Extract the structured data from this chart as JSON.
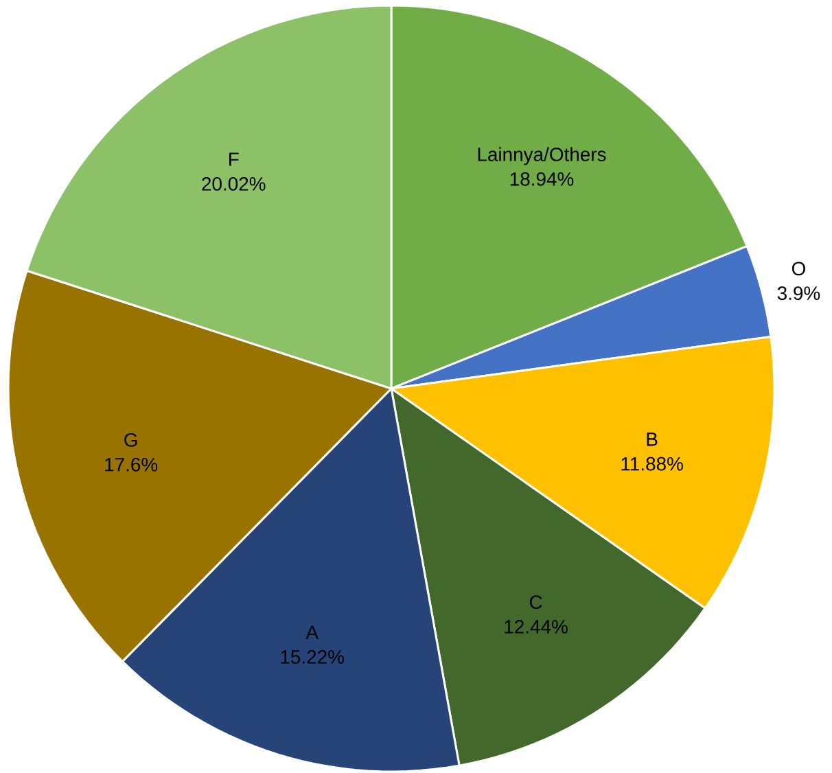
{
  "chart_data": {
    "type": "pie",
    "categories": [
      "Lainnya/Others",
      "O",
      "B",
      "C",
      "A",
      "G",
      "F"
    ],
    "values": [
      18.94,
      3.9,
      11.88,
      12.44,
      15.22,
      17.6,
      20.02
    ],
    "value_labels": [
      "18.94%",
      "3.9%",
      "11.88%",
      "12.44%",
      "15.22%",
      "17.6%",
      "20.02%"
    ],
    "colors": [
      "#70ad47",
      "#4472c4",
      "#ffc000",
      "#43682b",
      "#264478",
      "#997300",
      "#8cc168"
    ]
  }
}
